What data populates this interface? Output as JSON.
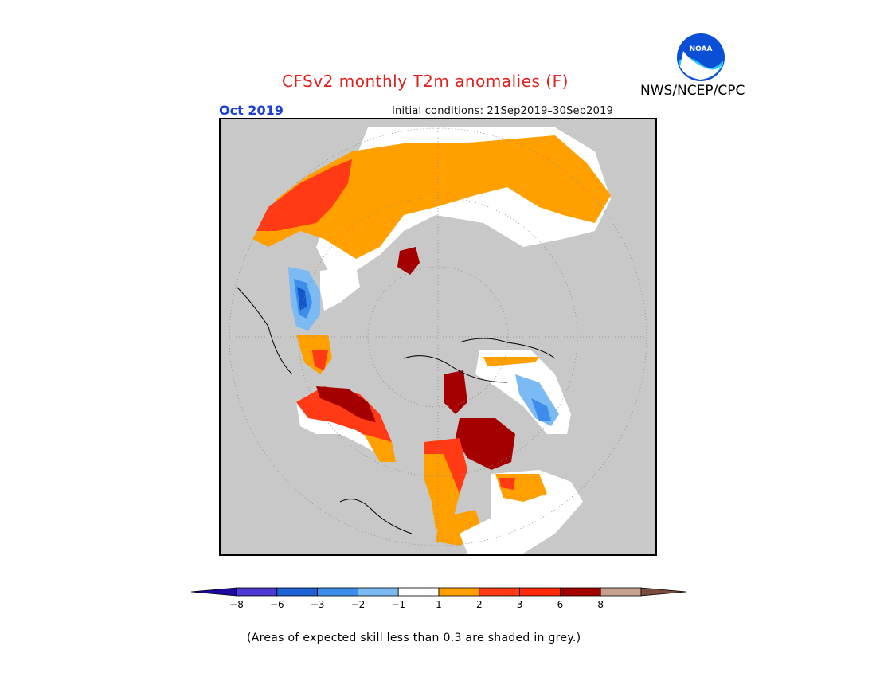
{
  "header": {
    "title": "CFSv2 monthly T2m anomalies (F)",
    "month": "Oct 2019",
    "initial_conditions": "Initial conditions: 21Sep2019–30Sep2019",
    "agency": "NWS/NCEP/CPC",
    "logo_text": "NOAA"
  },
  "colors": {
    "land_grey": "#c8c8c8",
    "neutral": "#ffffff",
    "pos1": "#ffa000",
    "pos2": "#ff3a14",
    "pos3": "#a50000",
    "neg1": "#6fb6f2",
    "neg2": "#3c8ce8",
    "neg3": "#1457c8"
  },
  "colorbar": {
    "segments": [
      {
        "color": "#1a0aa0"
      },
      {
        "color": "#4a3ad2"
      },
      {
        "color": "#1f62d6"
      },
      {
        "color": "#3d8eec"
      },
      {
        "color": "#7cbaf4"
      },
      {
        "color": "#ffffff"
      },
      {
        "color": "#ffa000"
      },
      {
        "color": "#ff3a14"
      },
      {
        "color": "#ff2a0a"
      },
      {
        "color": "#a50000"
      },
      {
        "color": "#c9a08e"
      },
      {
        "color": "#7a4a3a"
      }
    ],
    "ticks": [
      "−8",
      "−6",
      "−3",
      "−2",
      "−1",
      "1",
      "2",
      "3",
      "6",
      "8"
    ]
  },
  "footnote": "(Areas of expected skill less than 0.3 are shaded in grey.)"
}
